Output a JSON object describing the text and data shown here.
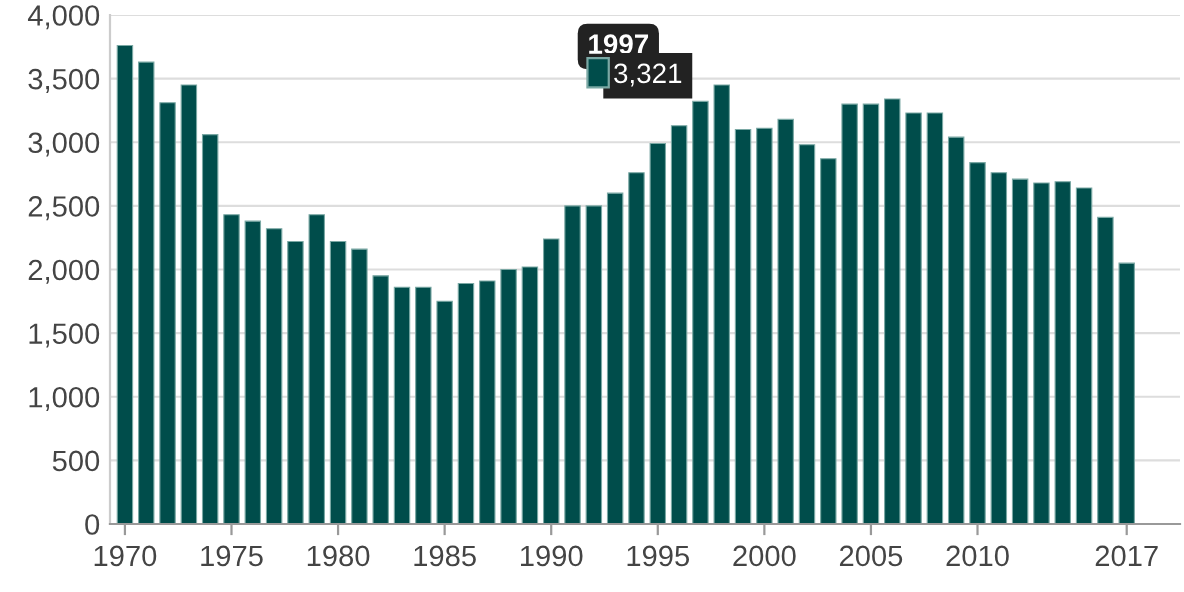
{
  "chart_data": {
    "type": "bar",
    "x": [
      1970,
      1971,
      1972,
      1973,
      1974,
      1975,
      1976,
      1977,
      1978,
      1979,
      1980,
      1981,
      1982,
      1983,
      1984,
      1985,
      1986,
      1987,
      1988,
      1989,
      1990,
      1991,
      1992,
      1993,
      1994,
      1995,
      1996,
      1997,
      1998,
      1999,
      2000,
      2001,
      2002,
      2003,
      2004,
      2005,
      2006,
      2007,
      2008,
      2009,
      2010,
      2011,
      2012,
      2013,
      2014,
      2015,
      2016,
      2017
    ],
    "values": [
      3760,
      3630,
      3310,
      3450,
      3060,
      2430,
      2380,
      2320,
      2220,
      2430,
      2220,
      2160,
      1950,
      1860,
      1860,
      1750,
      1890,
      1910,
      2000,
      2020,
      2240,
      2500,
      2500,
      2600,
      2760,
      2990,
      3130,
      3321,
      3450,
      3100,
      3110,
      3180,
      2980,
      2870,
      3300,
      3300,
      3340,
      3230,
      3230,
      3040,
      2840,
      2760,
      2710,
      2680,
      2690,
      2640,
      2410,
      2050
    ],
    "color": "#004d4b",
    "xlim": [
      1969.3,
      2019.5
    ],
    "xticks": [
      1970,
      1975,
      1980,
      1985,
      1990,
      1995,
      2000,
      2005,
      2010,
      2017
    ],
    "ylim": [
      0,
      4000
    ],
    "yticks": [
      {
        "value": 0,
        "label": "0"
      },
      {
        "value": 500,
        "label": "500"
      },
      {
        "value": 1000,
        "label": "1,000"
      },
      {
        "value": 1500,
        "label": "1,500"
      },
      {
        "value": 2000,
        "label": "2,000"
      },
      {
        "value": 2500,
        "label": "2,500"
      },
      {
        "value": 3000,
        "label": "3,000"
      },
      {
        "value": 3500,
        "label": "3,500"
      },
      {
        "value": 4000,
        "label": "4,000"
      }
    ],
    "grid": "y",
    "annotations": [
      {
        "text": "1997",
        "x": 1997,
        "y": 3321
      },
      {
        "text": "3,321",
        "x": 1997,
        "y": 3321
      }
    ]
  }
}
